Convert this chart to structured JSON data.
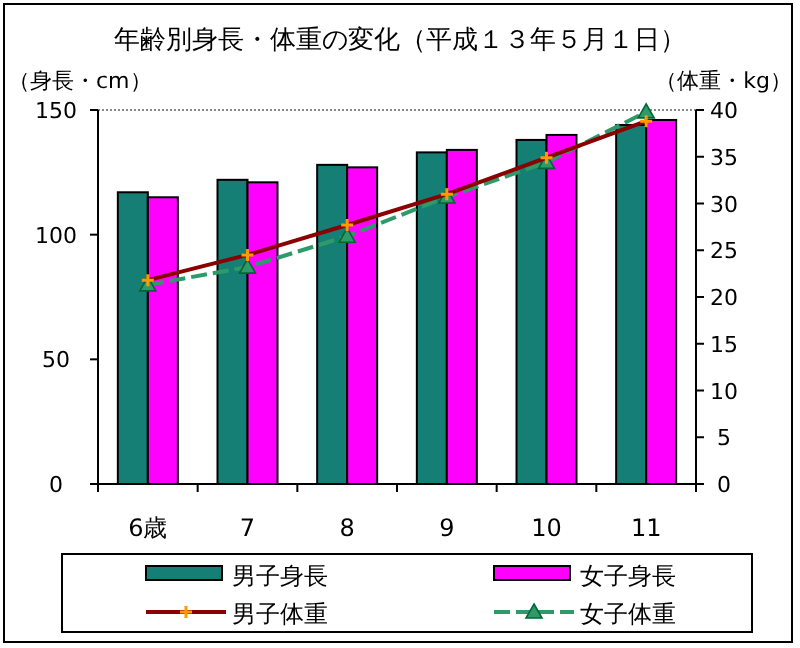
{
  "chart_data": {
    "type": "bar",
    "title": "年齢別身長・体重の変化（平成１３年５月１日）",
    "ylabel": "（身長・cm）",
    "y2label": "（体重・kg）",
    "categories": [
      "6歳",
      "7",
      "8",
      "9",
      "10",
      "11"
    ],
    "series": [
      {
        "name": "男子身長",
        "color": "#157f75",
        "values": [
          117,
          122,
          128,
          133,
          138,
          144
        ]
      },
      {
        "name": "女子身長",
        "color": "#ff00ff",
        "values": [
          115,
          121,
          127,
          134,
          140,
          146
        ]
      },
      {
        "name": "男子体重",
        "type": "line",
        "axis": "y2",
        "color": "#8b0000",
        "marker": "cross",
        "line_style": "solid",
        "values": [
          21.8,
          24.5,
          27.7,
          31.0,
          34.9,
          38.8
        ]
      },
      {
        "name": "女子体重",
        "type": "line",
        "axis": "y2",
        "color": "#2e9a6a",
        "marker": "triangle",
        "line_style": "dashed",
        "values": [
          21.3,
          23.2,
          26.5,
          30.7,
          34.4,
          39.8
        ]
      }
    ],
    "ylim": [
      0,
      150
    ],
    "yticks": [
      0,
      50,
      100,
      150
    ],
    "y2lim": [
      0,
      40
    ],
    "y2ticks": [
      0,
      5,
      10,
      15,
      20,
      25,
      30,
      35,
      40
    ],
    "legend": "bottom"
  }
}
